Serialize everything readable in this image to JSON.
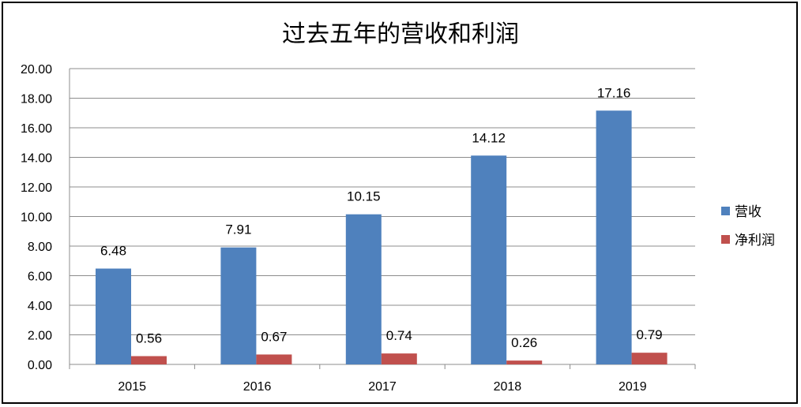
{
  "chart_data": {
    "type": "bar",
    "title": "过去五年的营收和利润",
    "categories": [
      "2015",
      "2016",
      "2017",
      "2018",
      "2019"
    ],
    "series": [
      {
        "name": "营收",
        "color": "#4f81bd",
        "values": [
          6.48,
          7.91,
          10.15,
          14.12,
          17.16
        ]
      },
      {
        "name": "净利润",
        "color": "#c0504d",
        "values": [
          0.56,
          0.67,
          0.74,
          0.26,
          0.79
        ]
      }
    ],
    "value_labels": [
      [
        "6.48",
        "7.91",
        "10.15",
        "14.12",
        "17.16"
      ],
      [
        "0.56",
        "0.67",
        "0.74",
        "0.26",
        "0.79"
      ]
    ],
    "xlabel": "",
    "ylabel": "",
    "ylim": [
      0,
      20
    ],
    "yticks": [
      "0.00",
      "2.00",
      "4.00",
      "6.00",
      "8.00",
      "10.00",
      "12.00",
      "14.00",
      "16.00",
      "18.00",
      "20.00"
    ],
    "grid": true,
    "legend": "right"
  }
}
